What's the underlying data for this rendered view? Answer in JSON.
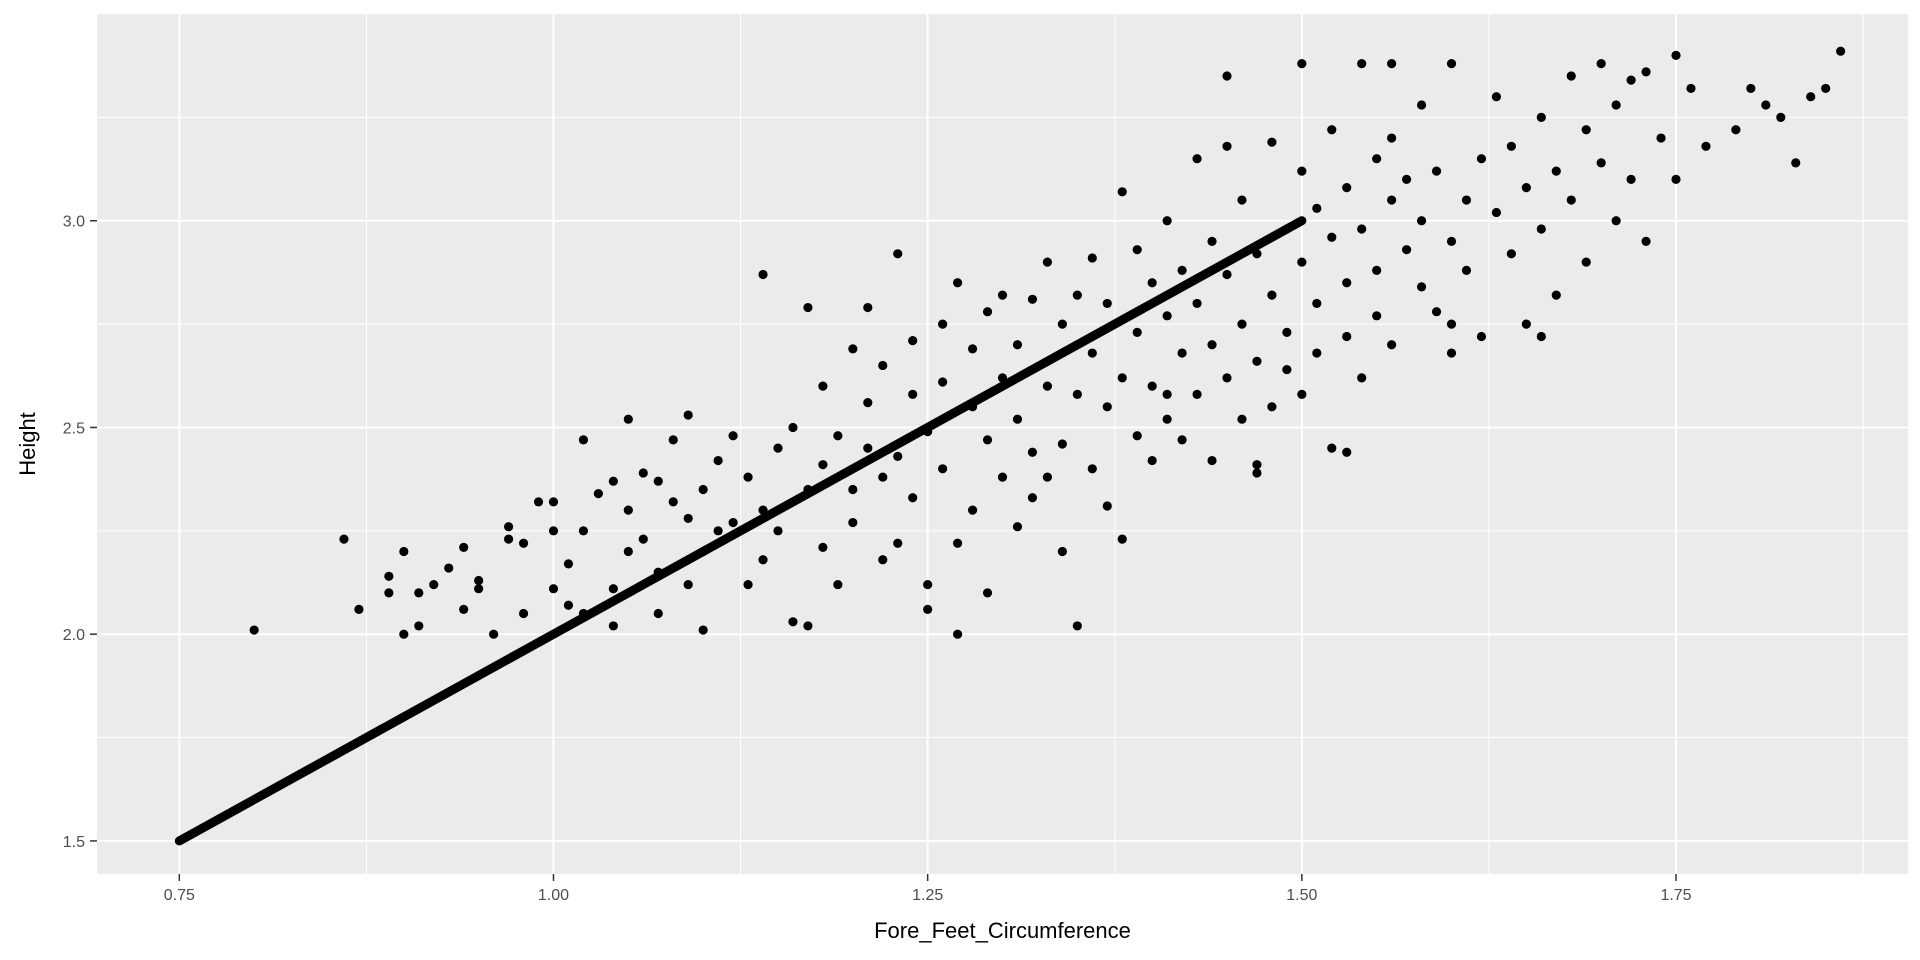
{
  "chart_data": {
    "type": "scatter",
    "xlabel": "Fore_Feet_Circumference",
    "ylabel": "Height",
    "xlim": [
      0.695,
      1.905
    ],
    "ylim": [
      1.42,
      3.5
    ],
    "x_ticks": [
      0.75,
      1.0,
      1.25,
      1.5,
      1.75
    ],
    "x_tick_labels": [
      "0.75",
      "1.00",
      "1.25",
      "1.50",
      "1.75"
    ],
    "y_ticks": [
      1.5,
      2.0,
      2.5,
      3.0
    ],
    "y_tick_labels": [
      "1.5",
      "2.0",
      "2.5",
      "3.0"
    ],
    "grid": true,
    "legend": "none",
    "colors": {
      "panel": "#ebebeb",
      "grid": "#ffffff",
      "points": "#000000"
    },
    "series": [
      {
        "kind": "line",
        "x": [
          0.75,
          1.5
        ],
        "y": [
          1.5,
          3.0
        ]
      },
      {
        "kind": "points",
        "points": [
          [
            0.8,
            2.01
          ],
          [
            0.86,
            2.23
          ],
          [
            0.87,
            2.06
          ],
          [
            0.89,
            2.1
          ],
          [
            0.89,
            2.14
          ],
          [
            0.9,
            2.0
          ],
          [
            0.9,
            2.2
          ],
          [
            0.91,
            2.02
          ],
          [
            0.91,
            2.1
          ],
          [
            0.92,
            2.12
          ],
          [
            0.93,
            2.16
          ],
          [
            0.94,
            2.06
          ],
          [
            0.94,
            2.21
          ],
          [
            0.95,
            2.13
          ],
          [
            0.95,
            2.11
          ],
          [
            0.96,
            2.0
          ],
          [
            0.97,
            2.23
          ],
          [
            0.97,
            2.26
          ],
          [
            0.98,
            2.22
          ],
          [
            0.98,
            2.05
          ],
          [
            0.99,
            2.32
          ],
          [
            1.0,
            2.11
          ],
          [
            1.0,
            2.25
          ],
          [
            1.0,
            2.32
          ],
          [
            1.01,
            2.17
          ],
          [
            1.01,
            2.07
          ],
          [
            1.02,
            2.05
          ],
          [
            1.02,
            2.25
          ],
          [
            1.02,
            2.47
          ],
          [
            1.03,
            2.34
          ],
          [
            1.04,
            2.37
          ],
          [
            1.04,
            2.11
          ],
          [
            1.04,
            2.02
          ],
          [
            1.05,
            2.2
          ],
          [
            1.05,
            2.3
          ],
          [
            1.05,
            2.52
          ],
          [
            1.06,
            2.23
          ],
          [
            1.06,
            2.39
          ],
          [
            1.07,
            2.37
          ],
          [
            1.07,
            2.05
          ],
          [
            1.07,
            2.15
          ],
          [
            1.08,
            2.32
          ],
          [
            1.08,
            2.47
          ],
          [
            1.09,
            2.28
          ],
          [
            1.09,
            2.12
          ],
          [
            1.09,
            2.53
          ],
          [
            1.1,
            2.2
          ],
          [
            1.1,
            2.35
          ],
          [
            1.1,
            2.01
          ],
          [
            1.11,
            2.42
          ],
          [
            1.11,
            2.25
          ],
          [
            1.12,
            2.48
          ],
          [
            1.12,
            2.27
          ],
          [
            1.13,
            2.38
          ],
          [
            1.13,
            2.12
          ],
          [
            1.14,
            2.87
          ],
          [
            1.14,
            2.3
          ],
          [
            1.14,
            2.18
          ],
          [
            1.15,
            2.45
          ],
          [
            1.15,
            2.25
          ],
          [
            1.16,
            2.03
          ],
          [
            1.16,
            2.5
          ],
          [
            1.17,
            2.35
          ],
          [
            1.17,
            2.02
          ],
          [
            1.17,
            2.79
          ],
          [
            1.18,
            2.41
          ],
          [
            1.18,
            2.21
          ],
          [
            1.18,
            2.6
          ],
          [
            1.19,
            2.48
          ],
          [
            1.19,
            2.12
          ],
          [
            1.2,
            2.35
          ],
          [
            1.2,
            2.69
          ],
          [
            1.2,
            2.27
          ],
          [
            1.21,
            2.56
          ],
          [
            1.21,
            2.45
          ],
          [
            1.21,
            2.79
          ],
          [
            1.22,
            2.38
          ],
          [
            1.22,
            2.18
          ],
          [
            1.22,
            2.65
          ],
          [
            1.23,
            2.92
          ],
          [
            1.23,
            2.43
          ],
          [
            1.23,
            2.22
          ],
          [
            1.24,
            2.58
          ],
          [
            1.24,
            2.71
          ],
          [
            1.24,
            2.33
          ],
          [
            1.25,
            2.06
          ],
          [
            1.25,
            2.49
          ],
          [
            1.25,
            2.12
          ],
          [
            1.26,
            2.75
          ],
          [
            1.26,
            2.4
          ],
          [
            1.26,
            2.61
          ],
          [
            1.27,
            2.0
          ],
          [
            1.27,
            2.22
          ],
          [
            1.27,
            2.85
          ],
          [
            1.28,
            2.55
          ],
          [
            1.28,
            2.3
          ],
          [
            1.28,
            2.69
          ],
          [
            1.29,
            2.47
          ],
          [
            1.29,
            2.78
          ],
          [
            1.29,
            2.1
          ],
          [
            1.3,
            2.62
          ],
          [
            1.3,
            2.38
          ],
          [
            1.3,
            2.82
          ],
          [
            1.31,
            2.52
          ],
          [
            1.31,
            2.26
          ],
          [
            1.31,
            2.7
          ],
          [
            1.32,
            2.44
          ],
          [
            1.32,
            2.81
          ],
          [
            1.32,
            2.33
          ],
          [
            1.33,
            2.6
          ],
          [
            1.33,
            2.9
          ],
          [
            1.33,
            2.38
          ],
          [
            1.34,
            2.75
          ],
          [
            1.34,
            2.46
          ],
          [
            1.34,
            2.2
          ],
          [
            1.35,
            2.58
          ],
          [
            1.35,
            2.02
          ],
          [
            1.35,
            2.82
          ],
          [
            1.36,
            2.68
          ],
          [
            1.36,
            2.4
          ],
          [
            1.36,
            2.91
          ],
          [
            1.37,
            2.55
          ],
          [
            1.37,
            2.31
          ],
          [
            1.37,
            2.8
          ],
          [
            1.38,
            2.62
          ],
          [
            1.38,
            2.23
          ],
          [
            1.38,
            3.07
          ],
          [
            1.39,
            2.73
          ],
          [
            1.39,
            2.48
          ],
          [
            1.39,
            2.93
          ],
          [
            1.4,
            2.6
          ],
          [
            1.4,
            2.42
          ],
          [
            1.4,
            2.85
          ],
          [
            1.41,
            2.77
          ],
          [
            1.41,
            2.52
          ],
          [
            1.41,
            3.0
          ],
          [
            1.42,
            2.68
          ],
          [
            1.42,
            2.47
          ],
          [
            1.42,
            2.88
          ],
          [
            1.43,
            2.58
          ],
          [
            1.43,
            3.15
          ],
          [
            1.43,
            2.8
          ],
          [
            1.44,
            2.7
          ],
          [
            1.44,
            2.42
          ],
          [
            1.44,
            2.95
          ],
          [
            1.45,
            2.62
          ],
          [
            1.45,
            3.18
          ],
          [
            1.45,
            2.87
          ],
          [
            1.46,
            2.75
          ],
          [
            1.46,
            2.52
          ],
          [
            1.46,
            3.05
          ],
          [
            1.47,
            2.66
          ],
          [
            1.47,
            2.39
          ],
          [
            1.47,
            2.92
          ],
          [
            1.48,
            2.82
          ],
          [
            1.48,
            3.19
          ],
          [
            1.48,
            2.55
          ],
          [
            1.49,
            2.73
          ],
          [
            1.49,
            2.98
          ],
          [
            1.49,
            2.64
          ],
          [
            1.5,
            2.9
          ],
          [
            1.5,
            3.12
          ],
          [
            1.5,
            2.58
          ],
          [
            1.51,
            2.8
          ],
          [
            1.51,
            3.03
          ],
          [
            1.51,
            2.68
          ],
          [
            1.52,
            2.96
          ],
          [
            1.52,
            3.22
          ],
          [
            1.52,
            2.45
          ],
          [
            1.53,
            2.85
          ],
          [
            1.53,
            3.08
          ],
          [
            1.53,
            2.72
          ],
          [
            1.54,
            2.98
          ],
          [
            1.54,
            2.62
          ],
          [
            1.54,
            3.38
          ],
          [
            1.55,
            2.88
          ],
          [
            1.55,
            3.15
          ],
          [
            1.55,
            2.77
          ],
          [
            1.56,
            3.05
          ],
          [
            1.56,
            3.2
          ],
          [
            1.56,
            2.7
          ],
          [
            1.57,
            2.93
          ],
          [
            1.57,
            3.1
          ],
          [
            1.58,
            2.84
          ],
          [
            1.58,
            3.0
          ],
          [
            1.58,
            3.28
          ],
          [
            1.59,
            2.78
          ],
          [
            1.59,
            3.12
          ],
          [
            1.6,
            2.95
          ],
          [
            1.6,
            2.68
          ],
          [
            1.6,
            3.38
          ],
          [
            1.61,
            3.05
          ],
          [
            1.61,
            2.88
          ],
          [
            1.62,
            3.15
          ],
          [
            1.62,
            2.72
          ],
          [
            1.63,
            3.02
          ],
          [
            1.63,
            3.3
          ],
          [
            1.64,
            2.92
          ],
          [
            1.64,
            3.18
          ],
          [
            1.65,
            2.75
          ],
          [
            1.65,
            3.08
          ],
          [
            1.66,
            3.25
          ],
          [
            1.66,
            2.98
          ],
          [
            1.67,
            3.12
          ],
          [
            1.67,
            2.82
          ],
          [
            1.68,
            3.35
          ],
          [
            1.68,
            3.05
          ],
          [
            1.69,
            3.22
          ],
          [
            1.69,
            2.9
          ],
          [
            1.7,
            3.14
          ],
          [
            1.7,
            3.38
          ],
          [
            1.71,
            3.0
          ],
          [
            1.71,
            3.28
          ],
          [
            1.72,
            3.1
          ],
          [
            1.73,
            2.95
          ],
          [
            1.73,
            3.36
          ],
          [
            1.74,
            3.2
          ],
          [
            1.75,
            3.1
          ],
          [
            1.75,
            3.4
          ],
          [
            1.76,
            3.32
          ],
          [
            1.77,
            3.18
          ],
          [
            1.79,
            3.22
          ],
          [
            1.8,
            3.32
          ],
          [
            1.81,
            3.28
          ],
          [
            1.82,
            3.25
          ],
          [
            1.83,
            3.14
          ],
          [
            1.84,
            3.3
          ],
          [
            1.85,
            3.32
          ],
          [
            1.86,
            3.41
          ],
          [
            1.66,
            2.72
          ],
          [
            1.53,
            2.44
          ],
          [
            1.45,
            3.35
          ],
          [
            1.5,
            3.38
          ],
          [
            1.56,
            3.38
          ],
          [
            1.72,
            3.34
          ],
          [
            1.6,
            2.75
          ],
          [
            1.41,
            2.58
          ],
          [
            1.47,
            2.41
          ]
        ]
      }
    ]
  }
}
